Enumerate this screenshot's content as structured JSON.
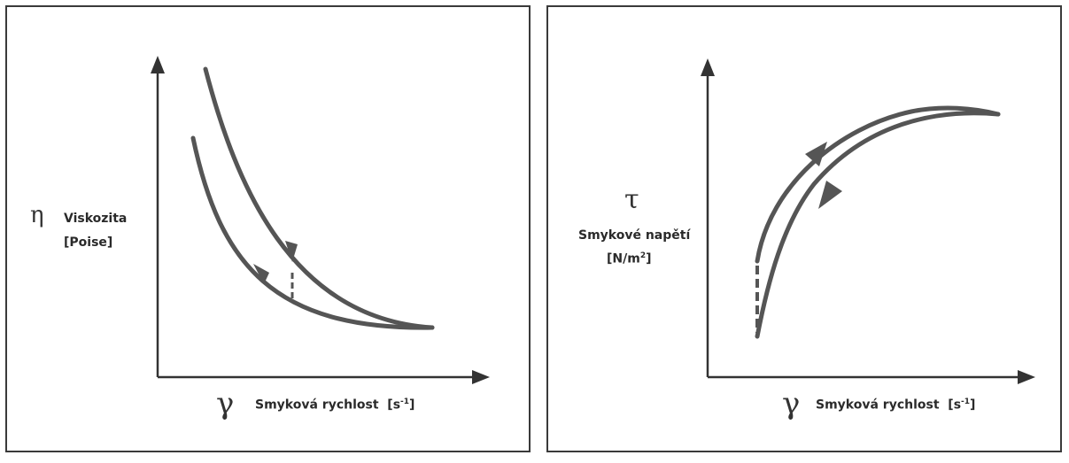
{
  "left_panel": {
    "y_symbol": "η",
    "y_label_line1": "Viskozita",
    "y_label_line2": "[Poise]",
    "x_symbol": "γ",
    "x_label": "Smyková rychlost",
    "x_unit_base": "[s",
    "x_unit_exp": "-1",
    "x_unit_close": "]"
  },
  "right_panel": {
    "y_symbol": "τ",
    "y_label_line1": "Smykové napětí",
    "y_unit_base": "[N/m",
    "y_unit_exp": "2",
    "y_unit_close": "]",
    "x_symbol": "γ",
    "x_label": "Smyková rychlost",
    "x_unit_base": "[s",
    "x_unit_exp": "-1",
    "x_unit_close": "]"
  },
  "colors": {
    "curve": "#555555",
    "axis": "#333333",
    "border": "#3a3a3a"
  }
}
